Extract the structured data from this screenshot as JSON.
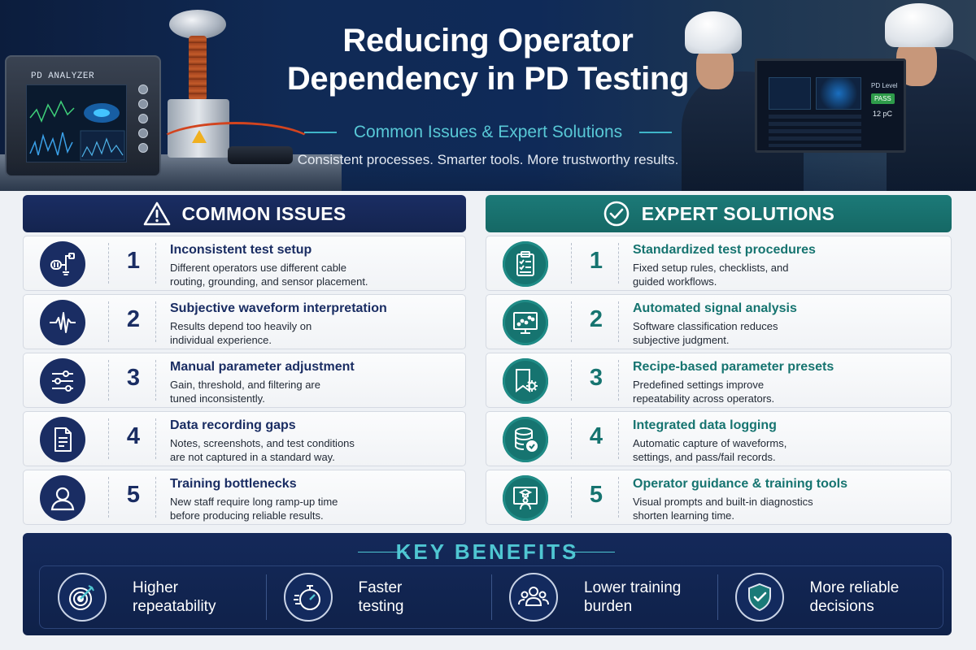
{
  "hero": {
    "title_line1": "Reducing Operator",
    "title_line2": "Dependency in PD Testing",
    "subtitle": "Common Issues & Expert Solutions",
    "tagline": "Consistent processes. Smarter tools. More trustworthy results.",
    "analyzer_label": "PD ANALYZER",
    "monitor": {
      "level_label": "PD Level",
      "status": "PASS",
      "value": "12 pC"
    }
  },
  "colors": {
    "navy": "#1a2d63",
    "teal": "#167470",
    "benefits_title": "#4fc6d2",
    "pass_green": "#2e9b4a"
  },
  "issues": {
    "header": "COMMON ISSUES",
    "header_icon": "warning-icon",
    "items": [
      {
        "num": "1",
        "icon": "cable-plug-icon",
        "title": "Inconsistent test setup",
        "desc_line1": "Different operators use different cable",
        "desc_line2": "routing, grounding, and sensor placement."
      },
      {
        "num": "2",
        "icon": "waveform-icon",
        "title": "Subjective waveform interpretation",
        "desc_line1": "Results depend too heavily on",
        "desc_line2": "individual experience."
      },
      {
        "num": "3",
        "icon": "sliders-icon",
        "title": "Manual parameter adjustment",
        "desc_line1": "Gain, threshold, and filtering are",
        "desc_line2": "tuned inconsistently."
      },
      {
        "num": "4",
        "icon": "document-icon",
        "title": "Data recording gaps",
        "desc_line1": "Notes, screenshots, and test conditions",
        "desc_line2": "are not captured in a standard way."
      },
      {
        "num": "5",
        "icon": "user-icon",
        "title": "Training bottlenecks",
        "desc_line1": "New staff require long ramp-up time",
        "desc_line2": "before producing reliable results."
      }
    ]
  },
  "solutions": {
    "header": "EXPERT SOLUTIONS",
    "header_icon": "check-circle-icon",
    "items": [
      {
        "num": "1",
        "icon": "clipboard-checklist-icon",
        "title": "Standardized test procedures",
        "desc_line1": "Fixed setup rules, checklists, and",
        "desc_line2": "guided workflows."
      },
      {
        "num": "2",
        "icon": "monitor-scatter-icon",
        "title": "Automated signal analysis",
        "desc_line1": "Software classification reduces",
        "desc_line2": "subjective judgment."
      },
      {
        "num": "3",
        "icon": "bookmark-gear-icon",
        "title": "Recipe-based parameter presets",
        "desc_line1": "Predefined settings improve",
        "desc_line2": "repeatability across operators."
      },
      {
        "num": "4",
        "icon": "database-check-icon",
        "title": "Integrated data logging",
        "desc_line1": "Automatic capture of waveforms,",
        "desc_line2": "settings, and pass/fail records."
      },
      {
        "num": "5",
        "icon": "trainer-screen-icon",
        "title": "Operator guidance & training tools",
        "desc_line1": "Visual prompts and built-in diagnostics",
        "desc_line2": "shorten learning time."
      }
    ]
  },
  "benefits": {
    "title": "KEY BENEFITS",
    "items": [
      {
        "icon": "target-icon",
        "line1": "Higher",
        "line2": "repeatability"
      },
      {
        "icon": "stopwatch-icon",
        "line1": "Faster",
        "line2": "testing"
      },
      {
        "icon": "team-icon",
        "line1": "Lower training",
        "line2": "burden"
      },
      {
        "icon": "shield-check-icon",
        "line1": "More reliable",
        "line2": "decisions"
      }
    ]
  }
}
